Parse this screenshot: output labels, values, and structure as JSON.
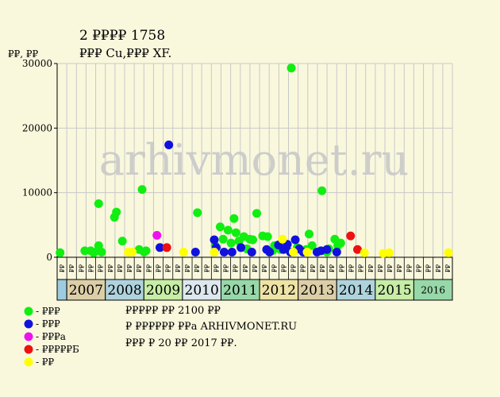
{
  "title": "2 ₽₽₽₽ 1758",
  "subtitle": "₽₽₽ Cu,₽₽₽ XF.",
  "ylabel": "₽₽, ₽₽",
  "watermark": "arhivmonet.ru",
  "legend": [
    {
      "label": "- ₽₽₽",
      "color": "#11ee11"
    },
    {
      "label": "- ₽₽₽",
      "color": "#1111dd"
    },
    {
      "label": "- ₽₽₽a",
      "color": "#ee11ee"
    },
    {
      "label": "- ₽₽₽₽₽Б",
      "color": "#ee1111"
    },
    {
      "label": "- ₽₽",
      "color": "#ffff00"
    }
  ],
  "notes": [
    "₽₽₽₽₽ ₽₽ 2100 ₽₽",
    "₽ ₽₽₽₽₽₽ ₽₽a ARHIVMONET.RU",
    "₽₽₽ ₽ 20 ₽₽ 2017 ₽₽."
  ],
  "chart_data": {
    "type": "scatter",
    "ylim": [
      0,
      30000
    ],
    "yticks": [
      0,
      10000,
      20000,
      30000
    ],
    "grid": true,
    "legend_position": "bottom-left",
    "x_unit": "quarter",
    "xlim": [
      0,
      40
    ],
    "years": [
      {
        "label": "",
        "color": "#9ecbdf"
      },
      {
        "label": "2007",
        "color": "#dccfa8"
      },
      {
        "label": "2008",
        "color": "#afd3dd"
      },
      {
        "label": "2009",
        "color": "#c7eda6"
      },
      {
        "label": "2010",
        "color": "#dde7ee"
      },
      {
        "label": "2011",
        "color": "#97d8a8"
      },
      {
        "label": "2012",
        "color": "#eee3a6"
      },
      {
        "label": "2013",
        "color": "#dccfa8"
      },
      {
        "label": "2014",
        "color": "#afd3dd"
      },
      {
        "label": "2015",
        "color": "#c7eda6"
      },
      {
        "label": "2016",
        "color": "#97d8a8"
      }
    ],
    "quarter_labels": [
      "₽₽",
      "₽₽",
      "₽₽",
      "₽₽",
      "₽₽",
      "₽₽",
      "₽₽",
      "₽₽",
      "₽₽",
      "₽₽",
      "₽₽",
      "₽₽",
      "₽₽",
      "₽₽",
      "₽₽",
      "₽₽",
      "₽₽",
      "₽₽",
      "₽₽",
      "₽₽",
      "₽₽",
      "₽₽",
      "₽₽",
      "₽₽",
      "₽₽",
      "₽₽",
      "₽₽",
      "₽₽",
      "₽₽",
      "₽₽",
      "₽₽",
      "₽₽",
      "₽₽",
      "₽₽",
      "₽₽",
      "₽₽",
      "₽₽",
      "₽₽",
      "₽₽",
      "₽₽",
      "₽₽"
    ],
    "series": [
      {
        "category": "green",
        "color": "#11ee11",
        "points": [
          [
            0.3,
            700
          ],
          [
            2.8,
            1000
          ],
          [
            3.4,
            1000
          ],
          [
            3.7,
            700
          ],
          [
            4.2,
            8300
          ],
          [
            4.1,
            1000
          ],
          [
            4.5,
            800
          ],
          [
            4.2,
            1800
          ],
          [
            5.8,
            6200
          ],
          [
            6.0,
            7000
          ],
          [
            6.6,
            2500
          ],
          [
            8.3,
            1200
          ],
          [
            8.6,
            10500
          ],
          [
            9.0,
            1000
          ],
          [
            8.8,
            800
          ],
          [
            14.2,
            6900
          ],
          [
            16.0,
            1800
          ],
          [
            16.5,
            4700
          ],
          [
            16.8,
            2800
          ],
          [
            17.3,
            4200
          ],
          [
            17.6,
            2200
          ],
          [
            17.9,
            6000
          ],
          [
            18.1,
            3800
          ],
          [
            18.4,
            2500
          ],
          [
            18.9,
            3200
          ],
          [
            19.2,
            1300
          ],
          [
            19.5,
            2800
          ],
          [
            19.8,
            2700
          ],
          [
            20.2,
            6800
          ],
          [
            20.8,
            3300
          ],
          [
            21.3,
            3200
          ],
          [
            21.8,
            1000
          ],
          [
            22.0,
            1800
          ],
          [
            22.6,
            1200
          ],
          [
            23.2,
            1500
          ],
          [
            23.7,
            29300
          ],
          [
            24.3,
            1500
          ],
          [
            25.2,
            1200
          ],
          [
            25.5,
            3600
          ],
          [
            25.8,
            1800
          ],
          [
            26.8,
            10300
          ],
          [
            27.5,
            1300
          ],
          [
            28.1,
            2800
          ],
          [
            28.4,
            1800
          ],
          [
            28.7,
            2200
          ],
          [
            27.3,
            800
          ]
        ]
      },
      {
        "category": "blue",
        "color": "#1111dd",
        "points": [
          [
            10.4,
            1500
          ],
          [
            11.3,
            17400
          ],
          [
            14.0,
            800
          ],
          [
            15.9,
            2700
          ],
          [
            16.1,
            1500
          ],
          [
            16.9,
            800
          ],
          [
            17.7,
            800
          ],
          [
            18.6,
            1500
          ],
          [
            19.7,
            800
          ],
          [
            21.2,
            1200
          ],
          [
            21.5,
            800
          ],
          [
            22.4,
            1900
          ],
          [
            22.9,
            1200
          ],
          [
            23.3,
            2000
          ],
          [
            23.6,
            800
          ],
          [
            24.1,
            2700
          ],
          [
            24.5,
            1300
          ],
          [
            24.9,
            800
          ],
          [
            26.3,
            800
          ],
          [
            26.7,
            1000
          ],
          [
            27.3,
            1200
          ],
          [
            28.3,
            800
          ]
        ]
      },
      {
        "category": "magenta",
        "color": "#ee11ee",
        "points": [
          [
            10.1,
            3400
          ]
        ]
      },
      {
        "category": "red",
        "color": "#ee1111",
        "points": [
          [
            11.1,
            1500
          ],
          [
            29.7,
            3300
          ],
          [
            30.4,
            1200
          ]
        ]
      },
      {
        "category": "yellow",
        "color": "#ffff00",
        "points": [
          [
            7.2,
            800
          ],
          [
            7.6,
            800
          ],
          [
            12.8,
            800
          ],
          [
            15.9,
            800
          ],
          [
            23.9,
            800
          ],
          [
            25.3,
            800
          ],
          [
            31.1,
            700
          ],
          [
            33.0,
            600
          ],
          [
            33.6,
            700
          ],
          [
            39.6,
            700
          ],
          [
            22.8,
            2800
          ]
        ]
      }
    ]
  }
}
